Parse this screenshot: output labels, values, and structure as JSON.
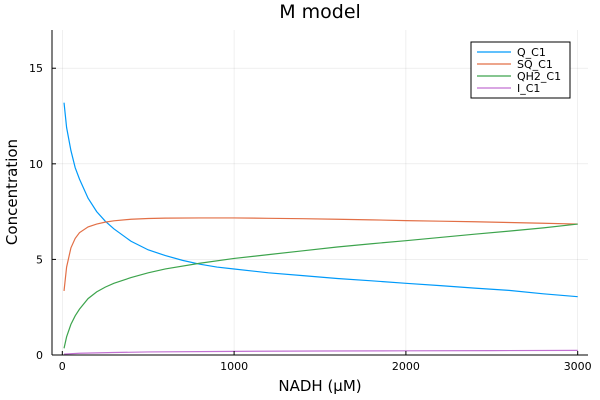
{
  "chart_data": {
    "type": "line",
    "title": "M model",
    "xlabel": "NADH (μM)",
    "ylabel": "Concentration",
    "xlim": [
      -60,
      3060
    ],
    "ylim": [
      0,
      17
    ],
    "xticks": [
      0,
      1000,
      2000,
      3000
    ],
    "xtick_labels": [
      "0",
      "1000",
      "2000",
      "3000"
    ],
    "yticks": [
      0,
      5,
      10,
      15
    ],
    "ytick_labels": [
      "0",
      "5",
      "10",
      "15"
    ],
    "grid": true,
    "legend_position": "top-right",
    "series": [
      {
        "name": "Q_C1",
        "color": "#009AFA",
        "x": [
          10,
          25,
          50,
          75,
          100,
          150,
          200,
          250,
          300,
          400,
          500,
          600,
          700,
          800,
          900,
          1000,
          1200,
          1400,
          1600,
          1800,
          2000,
          2200,
          2400,
          2600,
          2800,
          3000
        ],
        "y": [
          13.2,
          11.9,
          10.7,
          9.8,
          9.2,
          8.2,
          7.5,
          7.0,
          6.6,
          5.95,
          5.5,
          5.2,
          4.95,
          4.75,
          4.6,
          4.5,
          4.3,
          4.15,
          4.0,
          3.88,
          3.75,
          3.63,
          3.5,
          3.38,
          3.2,
          3.05
        ]
      },
      {
        "name": "SQ_C1",
        "color": "#E26F46",
        "x": [
          10,
          25,
          50,
          75,
          100,
          150,
          200,
          250,
          300,
          400,
          500,
          600,
          800,
          1000,
          1200,
          1400,
          1600,
          1800,
          2000,
          2200,
          2400,
          2600,
          2800,
          3000
        ],
        "y": [
          3.35,
          4.6,
          5.6,
          6.1,
          6.4,
          6.7,
          6.85,
          6.95,
          7.02,
          7.1,
          7.14,
          7.16,
          7.17,
          7.17,
          7.15,
          7.13,
          7.1,
          7.07,
          7.03,
          7.0,
          6.97,
          6.93,
          6.89,
          6.85
        ]
      },
      {
        "name": "QH2_C1",
        "color": "#3DA44D",
        "x": [
          10,
          25,
          50,
          75,
          100,
          150,
          200,
          250,
          300,
          400,
          500,
          600,
          800,
          1000,
          1200,
          1400,
          1600,
          1800,
          2000,
          2200,
          2400,
          2600,
          2800,
          3000
        ],
        "y": [
          0.35,
          0.95,
          1.6,
          2.05,
          2.4,
          2.95,
          3.3,
          3.55,
          3.75,
          4.05,
          4.3,
          4.5,
          4.8,
          5.05,
          5.25,
          5.45,
          5.65,
          5.82,
          5.98,
          6.15,
          6.32,
          6.48,
          6.65,
          6.85
        ]
      },
      {
        "name": "I_C1",
        "color": "#C271D2",
        "x": [
          10,
          100,
          300,
          500,
          1000,
          1500,
          2000,
          2500,
          3000
        ],
        "y": [
          0.05,
          0.09,
          0.13,
          0.16,
          0.19,
          0.21,
          0.22,
          0.23,
          0.24
        ]
      }
    ]
  }
}
